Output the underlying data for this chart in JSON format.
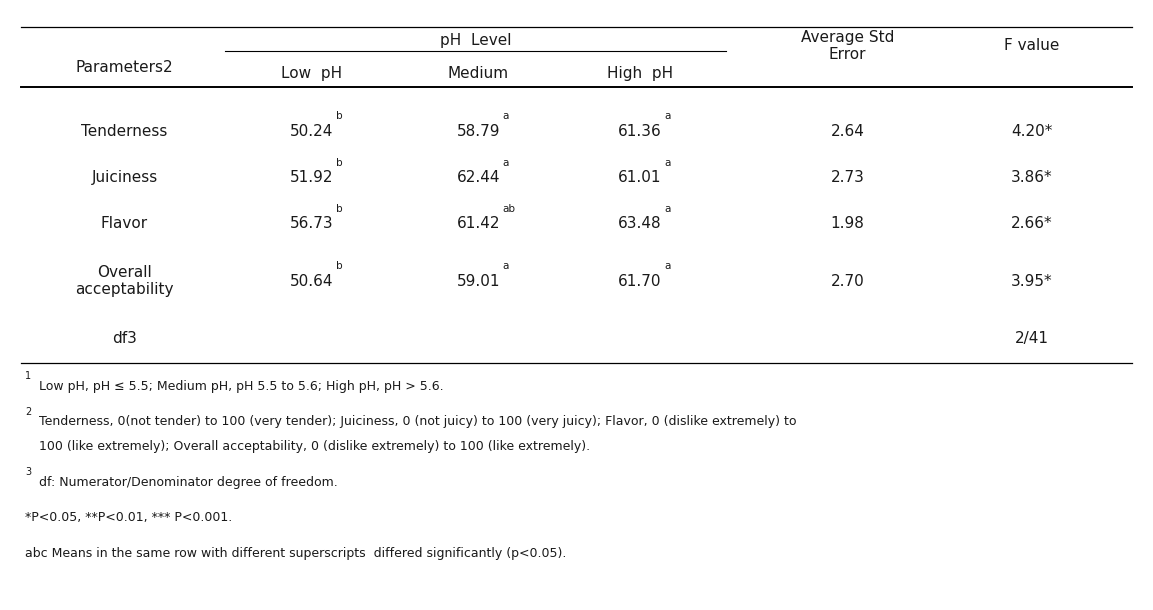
{
  "bg_color": "#ffffff",
  "header1_col1": "Parameters2",
  "header1_ph": "pH  Level",
  "header1_avg": "Average Std\nError",
  "header1_f": "F value",
  "header2_low": "Low  pH",
  "header2_med": "Medium",
  "header2_high": "High  pH",
  "rows": [
    {
      "param": "Tenderness",
      "low": "50.24",
      "low_sup": "b",
      "med": "58.79",
      "med_sup": "a",
      "high": "61.36",
      "high_sup": "a",
      "avg_std": "2.64",
      "f_value": "4.20*"
    },
    {
      "param": "Juiciness",
      "low": "51.92",
      "low_sup": "b",
      "med": "62.44",
      "med_sup": "a",
      "high": "61.01",
      "high_sup": "a",
      "avg_std": "2.73",
      "f_value": "3.86*"
    },
    {
      "param": "Flavor",
      "low": "56.73",
      "low_sup": "b",
      "med": "61.42",
      "med_sup": "ab",
      "high": "63.48",
      "high_sup": "a",
      "avg_std": "1.98",
      "f_value": "2.66*"
    },
    {
      "param": "Overall\nacceptability",
      "low": "50.64",
      "low_sup": "b",
      "med": "59.01",
      "med_sup": "a",
      "high": "61.70",
      "high_sup": "a",
      "avg_std": "2.70",
      "f_value": "3.95*"
    },
    {
      "param": "df3",
      "low": "",
      "low_sup": "",
      "med": "",
      "med_sup": "",
      "high": "",
      "high_sup": "",
      "avg_std": "",
      "f_value": "2/41"
    }
  ],
  "footnote1_sup": "1",
  "footnote1_text": "Low pH, pH ≤ 5.5; Medium pH, pH 5.5 to 5.6; High pH, pH > 5.6.",
  "footnote2_sup": "2",
  "footnote2_text": "Tenderness, 0(not tender) to 100 (very tender); Juiciness, 0 (not juicy) to 100 (very juicy); Flavor, 0 (dislike extremely) to",
  "footnote2_text2": "100 (like extremely); Overall acceptability, 0 (dislike extremely) to 100 (like extremely).",
  "footnote3_sup": "3",
  "footnote3_text": "df: Numerator/Denominator degree of freedom.",
  "footnote4_text": "*P<0.05, **P<0.01, *** P<0.001.",
  "footnote5_text": "abc Means in the same row with different superscripts  differed significantly (p<0.05).",
  "font_size": 11,
  "fn_font_size": 9,
  "text_color": "#1a1a1a"
}
